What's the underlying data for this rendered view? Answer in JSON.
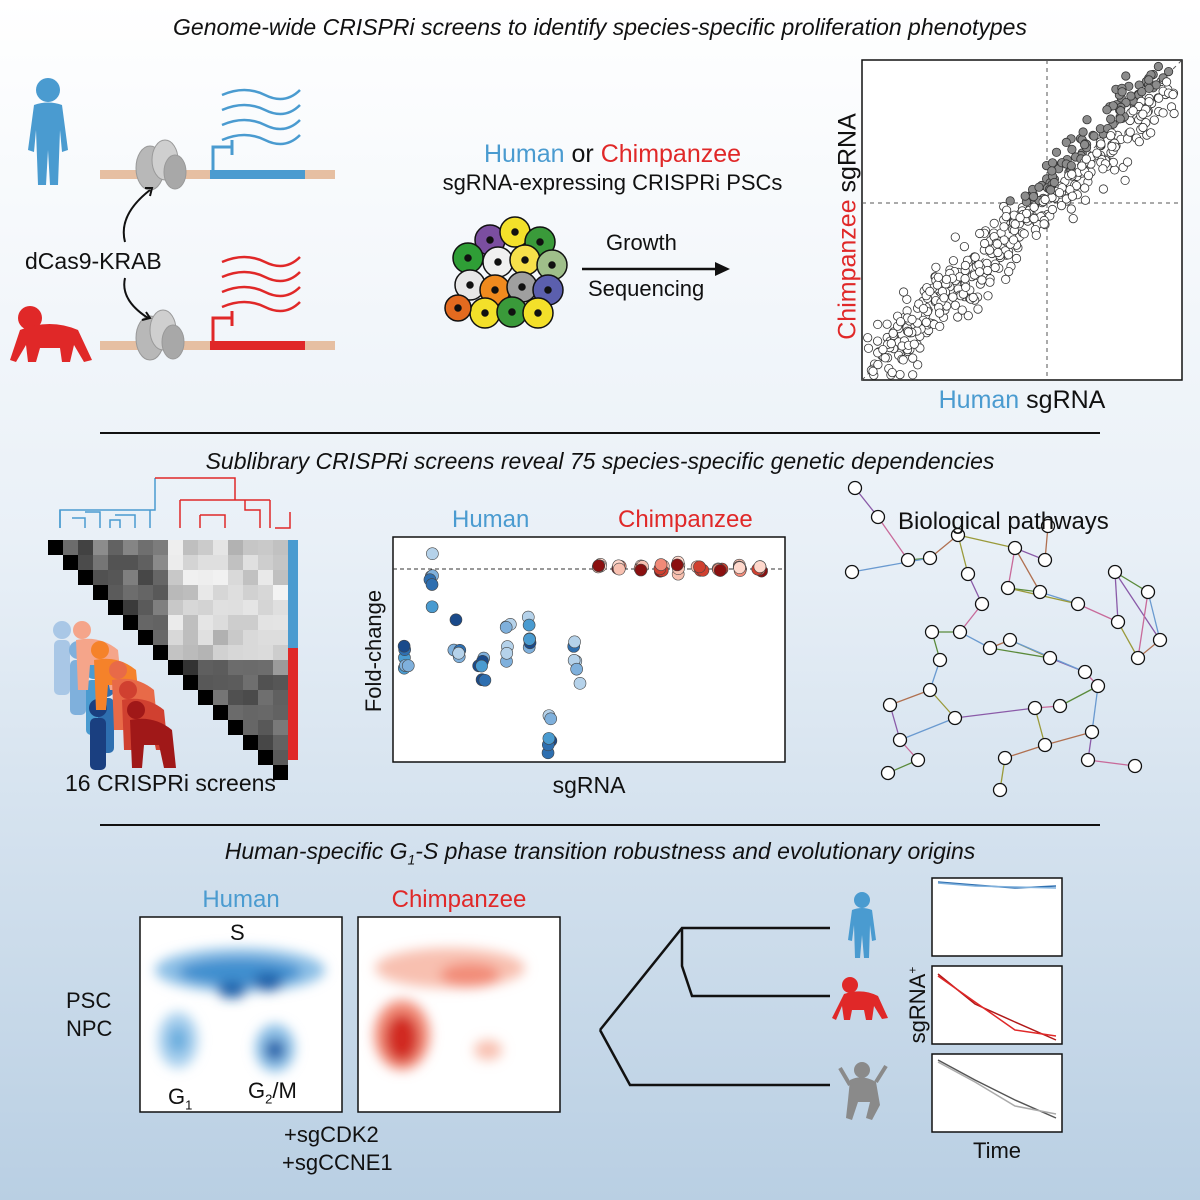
{
  "section1": {
    "title": "Genome-wide CRISPRi screens to identify species-specific proliferation phenotypes",
    "dcas9": "dCas9-KRAB",
    "human": "Human",
    "or": "or",
    "chimp": "Chimpanzee",
    "pscs": "sgRNA-expressing CRISPRi PSCs",
    "growth": "Growth",
    "sequencing": "Sequencing",
    "scatter_y_species": "Chimpanzee",
    "scatter_y_rest": "sgRNA",
    "scatter_x_species": "Human",
    "scatter_x_rest": "sgRNA"
  },
  "section2": {
    "title": "Sublibrary CRISPRi screens reveal 75 species-specific genetic dependencies",
    "screens": "16 CRISPRi screens",
    "dot_human": "Human",
    "dot_chimp": "Chimpanzee",
    "dot_ylabel": "Fold-change",
    "dot_xlabel": "sgRNA",
    "pathways": "Biological pathways"
  },
  "section3": {
    "title_pre": "Human-specific G",
    "title_sub": "1",
    "title_post": "-S phase transition robustness and evolutionary origins",
    "human": "Human",
    "chimp": "Chimpanzee",
    "s": "S",
    "psc": "PSC",
    "npc": "NPC",
    "g1_main": "G",
    "g1_sub": "1",
    "g2m_main": "G",
    "g2m_sub": "2",
    "g2m_rest": "/M",
    "sgcdk2": "+sgCDK2",
    "sgccne1": "+sgCCNE1",
    "sgrna_main": "sgRNA",
    "sgrna_sup": "+",
    "time": "Time"
  }
}
